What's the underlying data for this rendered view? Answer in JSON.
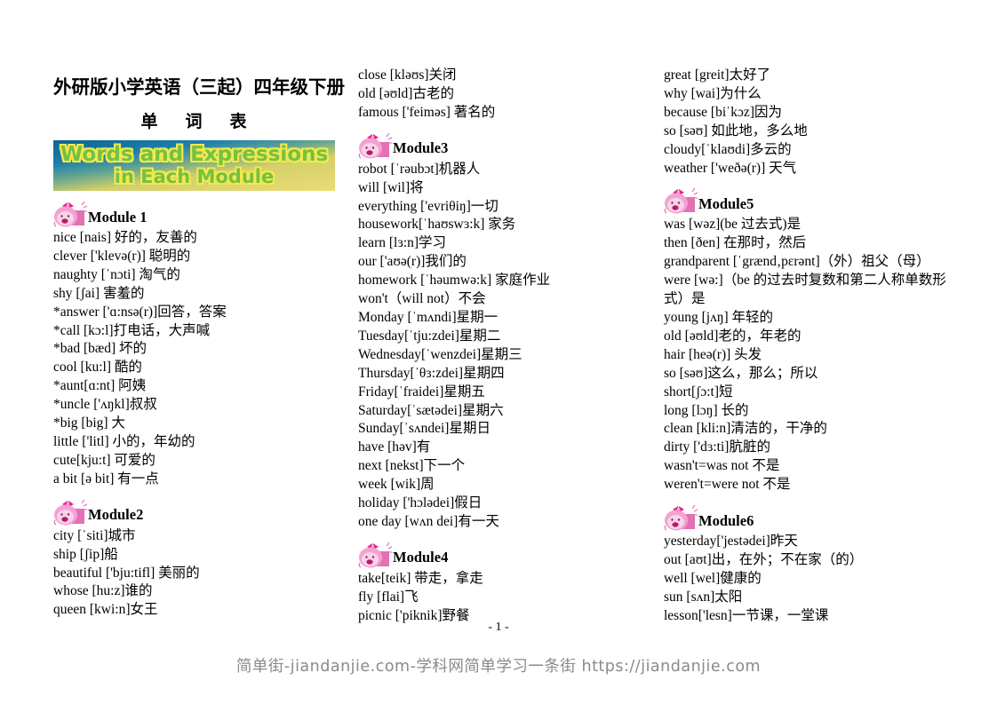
{
  "header": {
    "title": "外研版小学英语（三起）四年级下册",
    "subtitle": "单　词　表"
  },
  "banner": {
    "line1": "Words and Expressions",
    "line2": "in Each Module",
    "text_color": "#76c043",
    "outline_color": "#f2e94e",
    "background_top_color": "#0d6390",
    "background_bottom_color": "#e9dc74"
  },
  "icons": {
    "module_icon": "pig-mascot-icon",
    "module_icon_color": "#f3a2d2",
    "module_icon_accent": "#e470b5"
  },
  "columns": [
    {
      "blocks": [
        {
          "module": "Module 1"
        },
        {
          "words": [
            "nice [nais] 好的，友善的",
            "clever ['klevə(r)] 聪明的",
            "naughty [ˈnɔti] 淘气的",
            "shy [ʃai] 害羞的",
            "*answer ['ɑ:nsə(r)]回答，答案",
            "*call [kɔ:l]打电话，大声喊",
            "*bad [bæd] 坏的",
            "cool [ku:l] 酷的",
            "*aunt[ɑ:nt] 阿姨",
            "*uncle ['ʌŋkl]叔叔",
            "*big [big] 大",
            "little ['litl] 小的，年幼的",
            "cute[kju:t] 可爱的",
            "a bit [ə bit] 有一点"
          ]
        },
        {
          "module": "Module2"
        },
        {
          "words": [
            "city [ˈsiti]城市",
            "ship [ʃip]船",
            "beautiful ['bju:tifl] 美丽的",
            "whose [hu:z]谁的",
            "queen [kwi:n]女王"
          ]
        }
      ]
    },
    {
      "blocks": [
        {
          "words": [
            "close [kləʊs]关闭",
            "old [əʊld]古老的",
            "famous ['feiməs] 著名的"
          ]
        },
        {
          "module": "Module3"
        },
        {
          "words": [
            "robot [ˈrəubɔt]机器人",
            "will [wil]将",
            "everything ['evriθiŋ]一切",
            "housework[ˈhaʊswɜ:k] 家务",
            "learn [lɜ:n]学习",
            "our ['aʊə(r)]我们的",
            "homework [ˈhəumwə:k] 家庭作业",
            "won't（will not）不会",
            "Monday [ˈmʌndi]星期一",
            "Tuesday[ˈtju:zdei]星期二",
            "Wednesday[ˈwenzdei]星期三",
            "Thursday[ˈθɜ:zdei]星期四",
            "Friday[ˈfraidei]星期五",
            "Saturday[ˈsætədei]星期六",
            "Sunday[ˈsʌndei]星期日",
            "have [həv]有",
            "next [nekst]下一个",
            "week [wik]周",
            "holiday ['hɔlədei]假日",
            "one day [wʌn dei]有一天"
          ]
        },
        {
          "module": "Module4"
        },
        {
          "words": [
            "take[teik] 带走，拿走",
            "fly [flai]飞",
            "picnic ['piknik]野餐"
          ]
        }
      ]
    },
    {
      "blocks": [
        {
          "words": [
            "great [greit]太好了",
            "why [wai]为什么",
            "because [biˈkɔz]因为",
            "so [səʊ]  如此地，多么地",
            "cloudy[ˈklaʊdi]多云的",
            "weather ['weðə(r)]  天气"
          ]
        },
        {
          "module": "Module5"
        },
        {
          "words": [
            "was [wəz](be 过去式)是",
            "then [ðen]  在那时，然后",
            "grandparent [ˈgrænd‚pɛrənt]（外）祖父（母）",
            "were [wə:]（be 的过去时复数和第二人称单数形式）是",
            "young [jʌŋ]  年轻的",
            "old [əʊld]老的，年老的",
            "hair [heə(r)]  头发",
            "so [səʊ]这么，那么；所以",
            "short[ʃɔ:t]短",
            "long [lɔŋ]  长的",
            "clean [kli:n]清洁的，干净的",
            "dirty ['dɜ:ti]肮脏的",
            "wasn't=was not 不是",
            "weren't=were not 不是"
          ]
        },
        {
          "module": "Module6"
        },
        {
          "words": [
            "yesterday['jestədei]昨天",
            "out [aʊt]出，在外；不在家（的）",
            "well [wel]健康的",
            "sun [sʌn]太阳",
            "lesson['lesn]一节课，一堂课"
          ]
        }
      ]
    }
  ],
  "footer": {
    "page_number": "- 1 -",
    "watermark": "简单街-jiandanjie.com-学科网简单学习一条街 https://jiandanjie.com",
    "watermark_color": "#8a8a8a"
  }
}
